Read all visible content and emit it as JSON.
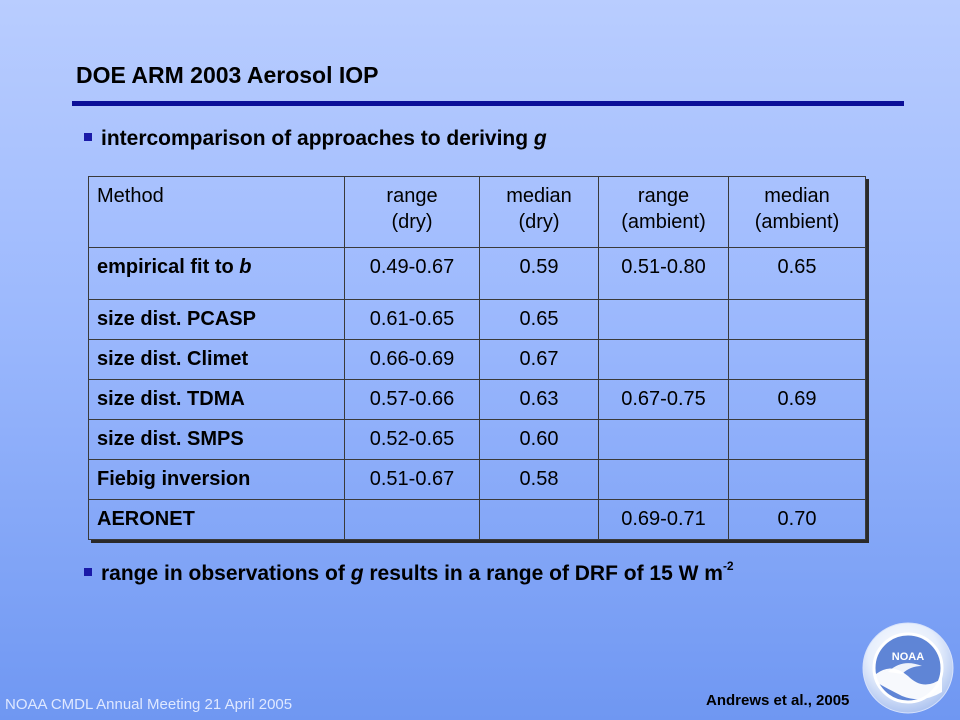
{
  "slide": {
    "title": "DOE ARM 2003 Aerosol IOP",
    "bullet1_text": "intercomparison of approaches to deriving ",
    "bullet1_italic": "g",
    "bullet2_pre": "range in observations of ",
    "bullet2_italic": "g",
    "bullet2_post": " results in a range of DRF of 15 W m",
    "bullet2_sup": "-2",
    "citation": "Andrews et al., 2005",
    "footer": "NOAA CMDL Annual Meeting 21 April 2005",
    "logo_text": "NOAA",
    "accent_color": "#0b0f98",
    "bullet_color": "#1a1aa8"
  },
  "table": {
    "headers": {
      "method": "Method",
      "range_dry_1": "range",
      "range_dry_2": "(dry)",
      "median_dry_1": "median",
      "median_dry_2": "(dry)",
      "range_amb_1": "range",
      "range_amb_2": "(ambient)",
      "median_amb_1": "median",
      "median_amb_2": "(ambient)"
    },
    "rows": [
      {
        "method": "empirical fit to ",
        "method_italic": "b",
        "range_dry": "0.49-0.67",
        "median_dry": "0.59",
        "range_amb": "0.51-0.80",
        "median_amb": "0.65"
      },
      {
        "method": "size dist. PCASP",
        "range_dry": "0.61-0.65",
        "median_dry": "0.65",
        "range_amb": "",
        "median_amb": ""
      },
      {
        "method": "size dist. Climet",
        "range_dry": "0.66-0.69",
        "median_dry": "0.67",
        "range_amb": "",
        "median_amb": ""
      },
      {
        "method": "size dist. TDMA",
        "range_dry": "0.57-0.66",
        "median_dry": "0.63",
        "range_amb": "0.67-0.75",
        "median_amb": "0.69"
      },
      {
        "method": "size dist. SMPS",
        "range_dry": "0.52-0.65",
        "median_dry": "0.60",
        "range_amb": "",
        "median_amb": ""
      },
      {
        "method": "Fiebig inversion",
        "range_dry": "0.51-0.67",
        "median_dry": "0.58",
        "range_amb": "",
        "median_amb": ""
      },
      {
        "method": "AERONET",
        "range_dry": "",
        "median_dry": "",
        "range_amb": "0.69-0.71",
        "median_amb": "0.70"
      }
    ]
  }
}
